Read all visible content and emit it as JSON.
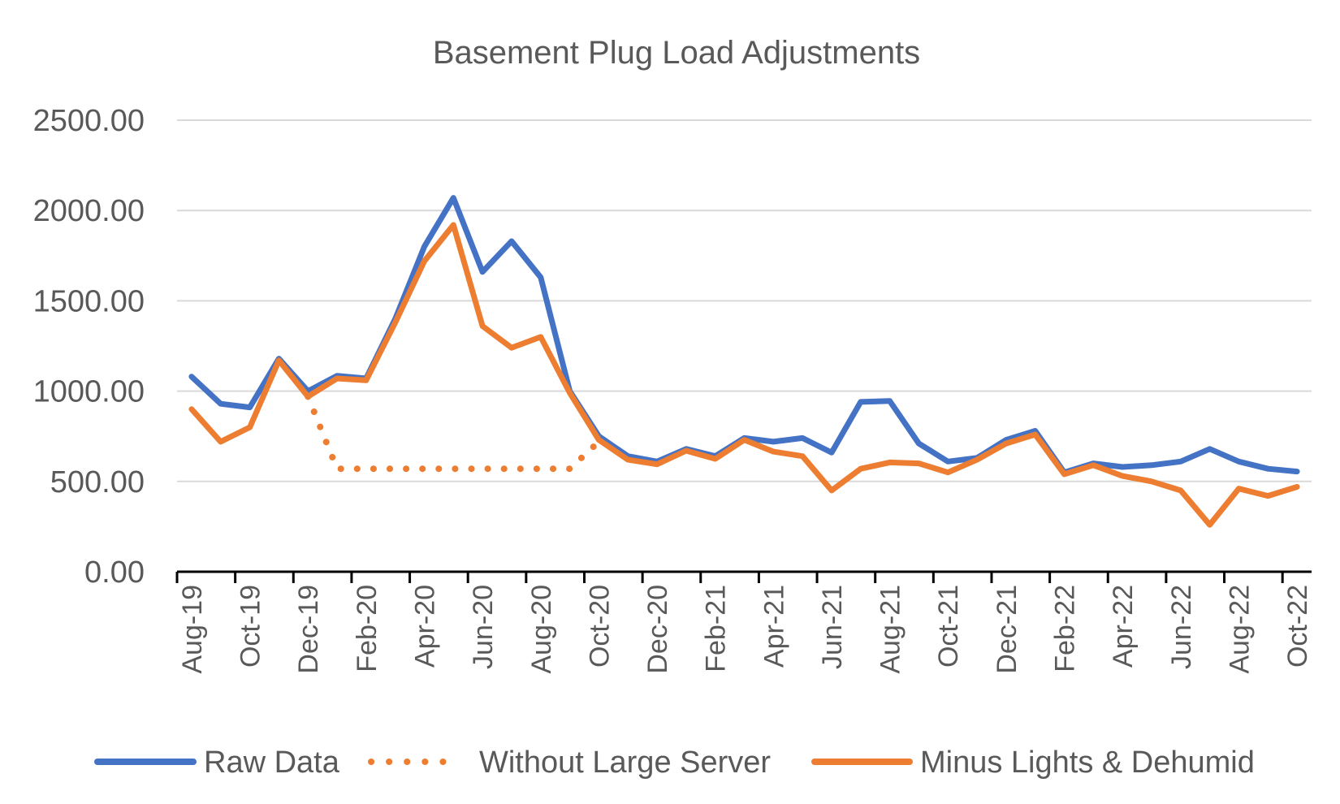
{
  "chart_data": {
    "type": "line",
    "title": "Basement Plug Load Adjustments",
    "xlabel": "",
    "ylabel": "",
    "ylim": [
      0,
      2500
    ],
    "ytick_labels": [
      "0.00",
      "500.00",
      "1000.00",
      "1500.00",
      "2000.00",
      "2500.00"
    ],
    "x_tick_labels": [
      "Aug-19",
      "Oct-19",
      "Dec-19",
      "Feb-20",
      "Apr-20",
      "Jun-20",
      "Aug-20",
      "Oct-20",
      "Dec-20",
      "Feb-21",
      "Apr-21",
      "Jun-21",
      "Aug-21",
      "Oct-21",
      "Dec-21",
      "Feb-22",
      "Apr-22",
      "Jun-22",
      "Aug-22",
      "Oct-22"
    ],
    "categories": [
      "Aug-19",
      "Sep-19",
      "Oct-19",
      "Nov-19",
      "Dec-19",
      "Jan-20",
      "Feb-20",
      "Mar-20",
      "Apr-20",
      "May-20",
      "Jun-20",
      "Jul-20",
      "Aug-20",
      "Sep-20",
      "Oct-20",
      "Nov-20",
      "Dec-20",
      "Jan-21",
      "Feb-21",
      "Mar-21",
      "Apr-21",
      "May-21",
      "Jun-21",
      "Jul-21",
      "Aug-21",
      "Sep-21",
      "Oct-21",
      "Nov-21",
      "Dec-21",
      "Jan-22",
      "Feb-22",
      "Mar-22",
      "Apr-22",
      "May-22",
      "Jun-22",
      "Jul-22",
      "Aug-22",
      "Sep-22",
      "Oct-22"
    ],
    "grid": true,
    "legend_position": "bottom",
    "series": [
      {
        "name": "Raw Data",
        "color": "#4472c4",
        "style": "solid",
        "values": [
          1080,
          930,
          910,
          1180,
          1000,
          1085,
          1070,
          1400,
          1800,
          2070,
          1660,
          1830,
          1630,
          1000,
          750,
          640,
          610,
          680,
          640,
          740,
          720,
          740,
          660,
          940,
          945,
          710,
          610,
          630,
          730,
          780,
          550,
          600,
          580,
          590,
          610,
          680,
          610,
          570,
          555
        ]
      },
      {
        "name": "Without Large Server",
        "color": "#ed7d31",
        "style": "dotted",
        "values": [
          null,
          null,
          null,
          null,
          970,
          570,
          570,
          570,
          570,
          570,
          570,
          570,
          570,
          570,
          720,
          null,
          null,
          null,
          null,
          null,
          null,
          null,
          null,
          null,
          null,
          null,
          null,
          null,
          null,
          null,
          null,
          null,
          null,
          null,
          null,
          null,
          null,
          null,
          null
        ]
      },
      {
        "name": "Minus Lights & Dehumid",
        "color": "#ed7d31",
        "style": "solid",
        "values": [
          900,
          720,
          800,
          1170,
          970,
          1070,
          1060,
          1380,
          1720,
          1920,
          1360,
          1240,
          1300,
          990,
          730,
          620,
          595,
          670,
          625,
          730,
          665,
          640,
          450,
          570,
          605,
          600,
          550,
          620,
          710,
          760,
          540,
          590,
          530,
          500,
          450,
          260,
          460,
          420,
          470
        ]
      }
    ]
  }
}
